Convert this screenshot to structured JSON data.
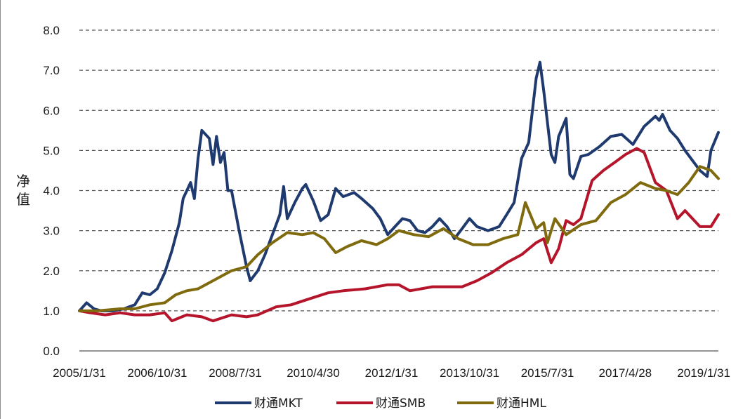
{
  "chart_data": {
    "type": "line",
    "title": "",
    "xlabel": "",
    "ylabel": "净值",
    "ylim": [
      0,
      8
    ],
    "y_ticks": [
      "0.0",
      "1.0",
      "2.0",
      "3.0",
      "4.0",
      "5.0",
      "6.0",
      "7.0",
      "8.0"
    ],
    "x_ticks": [
      "2005/1/31",
      "2006/10/31",
      "2008/7/31",
      "2010/4/30",
      "2012/1/31",
      "2013/10/31",
      "2015/7/31",
      "2017/4/28",
      "2019/1/31"
    ],
    "x_range": [
      "2005/1/31",
      "2019/5/31"
    ],
    "grid": "horizontal dashed",
    "legend_position": "bottom",
    "series": [
      {
        "name": "财通MKT",
        "color": "#1f3a6e",
        "points": [
          [
            "2005/1/31",
            1.0
          ],
          [
            "2005/3/31",
            1.2
          ],
          [
            "2005/5/31",
            1.05
          ],
          [
            "2005/7/31",
            1.0
          ],
          [
            "2005/10/31",
            1.0
          ],
          [
            "2006/1/31",
            1.05
          ],
          [
            "2006/4/30",
            1.15
          ],
          [
            "2006/6/30",
            1.45
          ],
          [
            "2006/8/31",
            1.4
          ],
          [
            "2006/10/31",
            1.55
          ],
          [
            "2006/12/31",
            1.95
          ],
          [
            "2007/2/28",
            2.5
          ],
          [
            "2007/4/30",
            3.2
          ],
          [
            "2007/5/31",
            3.8
          ],
          [
            "2007/7/31",
            4.2
          ],
          [
            "2007/8/31",
            3.8
          ],
          [
            "2007/9/30",
            4.8
          ],
          [
            "2007/10/31",
            5.5
          ],
          [
            "2007/12/31",
            5.3
          ],
          [
            "2008/1/31",
            4.65
          ],
          [
            "2008/2/28",
            5.35
          ],
          [
            "2008/3/31",
            4.7
          ],
          [
            "2008/4/30",
            4.95
          ],
          [
            "2008/5/31",
            4.0
          ],
          [
            "2008/6/30",
            4.0
          ],
          [
            "2008/8/31",
            3.0
          ],
          [
            "2008/10/31",
            2.1
          ],
          [
            "2008/11/30",
            1.75
          ],
          [
            "2009/1/31",
            2.0
          ],
          [
            "2009/3/31",
            2.4
          ],
          [
            "2009/5/31",
            2.9
          ],
          [
            "2009/7/31",
            3.4
          ],
          [
            "2009/8/31",
            4.1
          ],
          [
            "2009/9/30",
            3.3
          ],
          [
            "2009/11/30",
            3.7
          ],
          [
            "2010/1/31",
            4.05
          ],
          [
            "2010/2/28",
            4.15
          ],
          [
            "2010/4/30",
            3.75
          ],
          [
            "2010/6/30",
            3.25
          ],
          [
            "2010/8/31",
            3.4
          ],
          [
            "2010/10/31",
            4.05
          ],
          [
            "2010/12/31",
            3.85
          ],
          [
            "2011/3/31",
            3.95
          ],
          [
            "2011/5/31",
            3.8
          ],
          [
            "2011/8/31",
            3.55
          ],
          [
            "2011/10/31",
            3.3
          ],
          [
            "2011/12/31",
            2.9
          ],
          [
            "2012/2/29",
            3.1
          ],
          [
            "2012/4/30",
            3.3
          ],
          [
            "2012/6/30",
            3.25
          ],
          [
            "2012/8/31",
            3.0
          ],
          [
            "2012/10/31",
            2.95
          ],
          [
            "2012/12/31",
            3.1
          ],
          [
            "2013/2/28",
            3.3
          ],
          [
            "2013/4/30",
            3.1
          ],
          [
            "2013/6/30",
            2.8
          ],
          [
            "2013/8/31",
            3.05
          ],
          [
            "2013/10/31",
            3.3
          ],
          [
            "2013/12/31",
            3.1
          ],
          [
            "2014/3/31",
            3.0
          ],
          [
            "2014/6/30",
            3.1
          ],
          [
            "2014/8/31",
            3.4
          ],
          [
            "2014/10/31",
            3.7
          ],
          [
            "2014/12/31",
            4.8
          ],
          [
            "2015/2/28",
            5.2
          ],
          [
            "2015/4/30",
            6.8
          ],
          [
            "2015/5/31",
            7.2
          ],
          [
            "2015/6/30",
            6.5
          ],
          [
            "2015/8/31",
            4.9
          ],
          [
            "2015/9/30",
            4.7
          ],
          [
            "2015/10/31",
            5.35
          ],
          [
            "2015/12/31",
            5.8
          ],
          [
            "2016/1/31",
            4.4
          ],
          [
            "2016/2/29",
            4.3
          ],
          [
            "2016/4/30",
            4.85
          ],
          [
            "2016/6/30",
            4.9
          ],
          [
            "2016/9/30",
            5.1
          ],
          [
            "2016/12/31",
            5.35
          ],
          [
            "2017/3/31",
            5.4
          ],
          [
            "2017/6/30",
            5.15
          ],
          [
            "2017/9/30",
            5.6
          ],
          [
            "2017/12/31",
            5.85
          ],
          [
            "2018/1/31",
            5.75
          ],
          [
            "2018/2/28",
            5.9
          ],
          [
            "2018/4/30",
            5.5
          ],
          [
            "2018/6/30",
            5.3
          ],
          [
            "2018/8/31",
            5.0
          ],
          [
            "2018/10/31",
            4.75
          ],
          [
            "2018/12/31",
            4.5
          ],
          [
            "2019/2/28",
            4.35
          ],
          [
            "2019/3/31",
            5.0
          ],
          [
            "2019/5/31",
            5.45
          ]
        ]
      },
      {
        "name": "财通SMB",
        "color": "#b5152b",
        "points": [
          [
            "2005/1/31",
            1.0
          ],
          [
            "2005/4/30",
            0.95
          ],
          [
            "2005/8/31",
            0.9
          ],
          [
            "2005/12/31",
            0.95
          ],
          [
            "2006/4/30",
            0.9
          ],
          [
            "2006/8/31",
            0.9
          ],
          [
            "2006/12/31",
            0.95
          ],
          [
            "2007/2/28",
            0.75
          ],
          [
            "2007/6/30",
            0.9
          ],
          [
            "2007/10/31",
            0.85
          ],
          [
            "2008/1/31",
            0.75
          ],
          [
            "2008/6/30",
            0.9
          ],
          [
            "2008/10/31",
            0.85
          ],
          [
            "2009/1/31",
            0.9
          ],
          [
            "2009/6/30",
            1.1
          ],
          [
            "2009/10/31",
            1.15
          ],
          [
            "2010/3/31",
            1.3
          ],
          [
            "2010/8/31",
            1.45
          ],
          [
            "2010/12/31",
            1.5
          ],
          [
            "2011/6/30",
            1.55
          ],
          [
            "2011/12/31",
            1.65
          ],
          [
            "2012/3/31",
            1.65
          ],
          [
            "2012/6/30",
            1.5
          ],
          [
            "2012/12/31",
            1.6
          ],
          [
            "2013/4/30",
            1.6
          ],
          [
            "2013/8/31",
            1.6
          ],
          [
            "2013/12/31",
            1.75
          ],
          [
            "2014/4/30",
            1.95
          ],
          [
            "2014/8/31",
            2.2
          ],
          [
            "2014/12/31",
            2.4
          ],
          [
            "2015/4/30",
            2.7
          ],
          [
            "2015/6/30",
            2.8
          ],
          [
            "2015/8/31",
            2.2
          ],
          [
            "2015/10/31",
            2.55
          ],
          [
            "2015/12/31",
            3.25
          ],
          [
            "2016/2/29",
            3.15
          ],
          [
            "2016/4/30",
            3.3
          ],
          [
            "2016/7/31",
            4.25
          ],
          [
            "2016/10/31",
            4.5
          ],
          [
            "2017/1/31",
            4.7
          ],
          [
            "2017/4/30",
            4.9
          ],
          [
            "2017/7/31",
            5.05
          ],
          [
            "2017/9/30",
            4.95
          ],
          [
            "2017/12/31",
            4.2
          ],
          [
            "2018/3/31",
            4.0
          ],
          [
            "2018/6/30",
            3.3
          ],
          [
            "2018/8/31",
            3.5
          ],
          [
            "2018/10/31",
            3.3
          ],
          [
            "2018/12/31",
            3.1
          ],
          [
            "2019/3/31",
            3.1
          ],
          [
            "2019/5/31",
            3.4
          ]
        ]
      },
      {
        "name": "财通HML",
        "color": "#7f6a0e",
        "points": [
          [
            "2005/1/31",
            1.0
          ],
          [
            "2005/6/30",
            1.0
          ],
          [
            "2005/12/31",
            1.05
          ],
          [
            "2006/4/30",
            1.05
          ],
          [
            "2006/8/31",
            1.15
          ],
          [
            "2006/12/31",
            1.2
          ],
          [
            "2007/3/31",
            1.4
          ],
          [
            "2007/6/30",
            1.5
          ],
          [
            "2007/9/30",
            1.55
          ],
          [
            "2007/12/31",
            1.7
          ],
          [
            "2008/3/31",
            1.85
          ],
          [
            "2008/6/30",
            2.0
          ],
          [
            "2008/10/31",
            2.1
          ],
          [
            "2009/1/31",
            2.4
          ],
          [
            "2009/5/31",
            2.7
          ],
          [
            "2009/9/30",
            2.95
          ],
          [
            "2010/1/31",
            2.9
          ],
          [
            "2010/4/30",
            2.95
          ],
          [
            "2010/7/31",
            2.8
          ],
          [
            "2010/10/31",
            2.45
          ],
          [
            "2011/1/31",
            2.6
          ],
          [
            "2011/5/31",
            2.75
          ],
          [
            "2011/9/30",
            2.65
          ],
          [
            "2011/12/31",
            2.8
          ],
          [
            "2012/3/31",
            3.0
          ],
          [
            "2012/7/31",
            2.9
          ],
          [
            "2012/11/30",
            2.85
          ],
          [
            "2013/3/31",
            3.05
          ],
          [
            "2013/7/31",
            2.8
          ],
          [
            "2013/11/30",
            2.65
          ],
          [
            "2014/3/31",
            2.65
          ],
          [
            "2014/7/31",
            2.8
          ],
          [
            "2014/11/30",
            2.9
          ],
          [
            "2015/1/31",
            3.7
          ],
          [
            "2015/4/30",
            3.05
          ],
          [
            "2015/6/30",
            3.2
          ],
          [
            "2015/7/31",
            2.7
          ],
          [
            "2015/9/30",
            3.3
          ],
          [
            "2015/12/31",
            2.9
          ],
          [
            "2016/4/30",
            3.15
          ],
          [
            "2016/8/31",
            3.25
          ],
          [
            "2016/12/31",
            3.7
          ],
          [
            "2017/4/30",
            3.9
          ],
          [
            "2017/8/31",
            4.2
          ],
          [
            "2017/12/31",
            4.05
          ],
          [
            "2018/3/31",
            4.0
          ],
          [
            "2018/6/30",
            3.9
          ],
          [
            "2018/9/30",
            4.2
          ],
          [
            "2018/12/31",
            4.6
          ],
          [
            "2019/3/31",
            4.5
          ],
          [
            "2019/5/31",
            4.3
          ]
        ]
      }
    ]
  }
}
